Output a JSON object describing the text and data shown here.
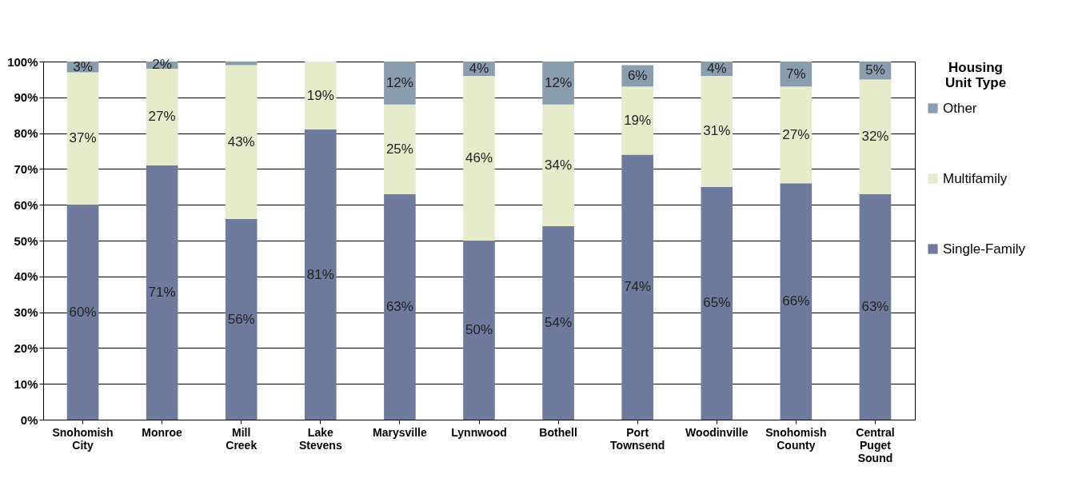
{
  "chart_data": {
    "type": "bar",
    "stacked": true,
    "legend_title": "Housing Unit Type",
    "legend": "right",
    "grid": "y",
    "categories": [
      "Snohomish City",
      "Monroe",
      "Mill Creek",
      "Lake Stevens",
      "Marysville",
      "Lynnwood",
      "Bothell",
      "Port Townsend",
      "Woodinville",
      "Snohomish County",
      "Central Puget Sound"
    ],
    "ylim": [
      0,
      100
    ],
    "yticks": [
      {
        "value": 0,
        "label": "0%"
      },
      {
        "value": 10,
        "label": "10%"
      },
      {
        "value": 20,
        "label": "20%"
      },
      {
        "value": 30,
        "label": "30%"
      },
      {
        "value": 40,
        "label": "40%"
      },
      {
        "value": 50,
        "label": "50%"
      },
      {
        "value": 60,
        "label": "60%"
      },
      {
        "value": 70,
        "label": "70%"
      },
      {
        "value": 80,
        "label": "80%"
      },
      {
        "value": 90,
        "label": "90%"
      },
      {
        "value": 100,
        "label": "100%"
      }
    ],
    "series": [
      {
        "name": "Single-Family",
        "color": "#6f7b9c",
        "values": [
          60,
          71,
          56,
          81,
          63,
          50,
          54,
          74,
          65,
          66,
          63
        ],
        "value_labels": [
          "60%",
          "71%",
          "56%",
          "81%",
          "63%",
          "50%",
          "54%",
          "74%",
          "65%",
          "66%",
          "63%"
        ]
      },
      {
        "name": "Multifamily",
        "color": "#e6ebcb",
        "values": [
          37,
          27,
          43,
          19,
          25,
          46,
          34,
          19,
          31,
          27,
          32
        ],
        "value_labels": [
          "37%",
          "27%",
          "43%",
          "19%",
          "25%",
          "46%",
          "34%",
          "19%",
          "31%",
          "27%",
          "32%"
        ]
      },
      {
        "name": "Other",
        "color": "#8a9dae",
        "values": [
          3,
          2,
          1,
          0,
          12,
          4,
          12,
          6,
          4,
          7,
          5
        ],
        "value_labels": [
          "3%",
          "2%",
          null,
          null,
          "12%",
          "4%",
          "12%",
          "6%",
          "4%",
          "7%",
          "5%"
        ]
      }
    ]
  }
}
